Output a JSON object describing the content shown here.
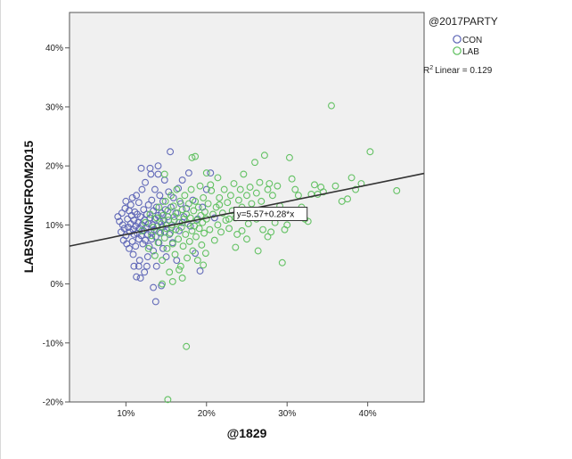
{
  "chart_data": {
    "type": "scatter",
    "title": "",
    "xlabel": "@1829",
    "ylabel": "LABSWINGFROM2015",
    "xlim": [
      0.03,
      0.47
    ],
    "ylim": [
      -0.2,
      0.46
    ],
    "x_ticks": [
      "10%",
      "20%",
      "30%",
      "40%"
    ],
    "x_tick_values": [
      0.1,
      0.2,
      0.3,
      0.4
    ],
    "y_ticks": [
      "40%",
      "30%",
      "20%",
      "10%",
      "0%",
      "-10%",
      "-20%"
    ],
    "y_tick_values": [
      0.4,
      0.3,
      0.2,
      0.1,
      0.0,
      -0.1,
      -0.2
    ],
    "grid": false,
    "legend": {
      "title": "@2017PARTY",
      "placement": "right",
      "entries": [
        {
          "name": "CON",
          "color": "#5b63b5"
        },
        {
          "name": "LAB",
          "color": "#5cbf5c"
        }
      ]
    },
    "fit_line": {
      "intercept": 0.0557,
      "slope": 0.28,
      "equation_label": "y=5.57+0.28*x",
      "r2_label": "Linear = 0.129",
      "color": "#333333"
    },
    "series": [
      {
        "name": "CON",
        "color": "#5b63b5",
        "points": [
          [
            0.09,
            0.114
          ],
          [
            0.092,
            0.106
          ],
          [
            0.094,
            0.088
          ],
          [
            0.095,
            0.12
          ],
          [
            0.096,
            0.1
          ],
          [
            0.097,
            0.074
          ],
          [
            0.098,
            0.094
          ],
          [
            0.099,
            0.128
          ],
          [
            0.1,
            0.082
          ],
          [
            0.1,
            0.14
          ],
          [
            0.101,
            0.068
          ],
          [
            0.102,
            0.11
          ],
          [
            0.103,
            0.096
          ],
          [
            0.104,
            0.124
          ],
          [
            0.104,
            0.06
          ],
          [
            0.105,
            0.088
          ],
          [
            0.106,
            0.134
          ],
          [
            0.106,
            0.102
          ],
          [
            0.107,
            0.116
          ],
          [
            0.108,
            0.072
          ],
          [
            0.108,
            0.146
          ],
          [
            0.109,
            0.092
          ],
          [
            0.11,
            0.084
          ],
          [
            0.11,
            0.03
          ],
          [
            0.11,
            0.108
          ],
          [
            0.111,
            0.122
          ],
          [
            0.112,
            0.064
          ],
          [
            0.112,
            0.098
          ],
          [
            0.113,
            0.15
          ],
          [
            0.113,
            0.012
          ],
          [
            0.114,
            0.086
          ],
          [
            0.114,
            0.118
          ],
          [
            0.115,
            0.104
          ],
          [
            0.116,
            0.076
          ],
          [
            0.116,
            0.138
          ],
          [
            0.117,
            0.094
          ],
          [
            0.117,
            0.04
          ],
          [
            0.118,
            0.114
          ],
          [
            0.119,
            0.082
          ],
          [
            0.12,
            0.16
          ],
          [
            0.12,
            0.1
          ],
          [
            0.121,
            0.068
          ],
          [
            0.122,
            0.126
          ],
          [
            0.122,
            0.09
          ],
          [
            0.123,
            0.108
          ],
          [
            0.124,
            0.074
          ],
          [
            0.124,
            0.172
          ],
          [
            0.125,
            0.096
          ],
          [
            0.126,
            0.118
          ],
          [
            0.126,
            0.03
          ],
          [
            0.127,
            0.084
          ],
          [
            0.128,
            0.134
          ],
          [
            0.128,
            0.102
          ],
          [
            0.129,
            0.064
          ],
          [
            0.13,
            0.196
          ],
          [
            0.13,
            0.112
          ],
          [
            0.131,
            0.088
          ],
          [
            0.132,
            0.142
          ],
          [
            0.132,
            0.076
          ],
          [
            0.133,
            0.1
          ],
          [
            0.134,
            0.124
          ],
          [
            0.134,
            0.056
          ],
          [
            0.135,
            0.092
          ],
          [
            0.136,
            0.16
          ],
          [
            0.136,
            0.11
          ],
          [
            0.137,
            0.08
          ],
          [
            0.138,
            0.13
          ],
          [
            0.138,
            0.03
          ],
          [
            0.139,
            0.098
          ],
          [
            0.14,
            0.186
          ],
          [
            0.14,
            0.116
          ],
          [
            0.141,
            0.07
          ],
          [
            0.142,
            0.106
          ],
          [
            0.142,
            0.15
          ],
          [
            0.143,
            0.086
          ],
          [
            0.144,
            0.12
          ],
          [
            0.144,
            -0.003
          ],
          [
            0.145,
            0.096
          ],
          [
            0.146,
            0.14
          ],
          [
            0.146,
            0.06
          ],
          [
            0.147,
            0.108
          ],
          [
            0.148,
            0.176
          ],
          [
            0.148,
            0.088
          ],
          [
            0.149,
            0.126
          ],
          [
            0.15,
            0.1
          ],
          [
            0.15,
            0.046
          ],
          [
            0.152,
            0.114
          ],
          [
            0.153,
            0.156
          ],
          [
            0.154,
            0.084
          ],
          [
            0.155,
            0.224
          ],
          [
            0.156,
            0.13
          ],
          [
            0.157,
            0.096
          ],
          [
            0.158,
            0.07
          ],
          [
            0.159,
            0.146
          ],
          [
            0.16,
            0.108
          ],
          [
            0.162,
            0.12
          ],
          [
            0.163,
            0.04
          ],
          [
            0.165,
            0.162
          ],
          [
            0.166,
            0.09
          ],
          [
            0.168,
            0.136
          ],
          [
            0.17,
            0.104
          ],
          [
            0.172,
            0.114
          ],
          [
            0.175,
            0.128
          ],
          [
            0.178,
            0.188
          ],
          [
            0.18,
            0.098
          ],
          [
            0.183,
            0.142
          ],
          [
            0.186,
            0.052
          ],
          [
            0.189,
            0.11
          ],
          [
            0.192,
            0.022
          ],
          [
            0.195,
            0.13
          ],
          [
            0.118,
            0.01
          ],
          [
            0.127,
            0.046
          ],
          [
            0.134,
            -0.006
          ],
          [
            0.137,
            -0.03
          ],
          [
            0.123,
            0.02
          ],
          [
            0.131,
            0.186
          ],
          [
            0.119,
            0.196
          ],
          [
            0.109,
            0.05
          ],
          [
            0.116,
            0.03
          ],
          [
            0.14,
            0.2
          ],
          [
            0.205,
            0.188
          ],
          [
            0.17,
            0.176
          ],
          [
            0.21,
            0.112
          ],
          [
            0.2,
            0.16
          ]
        ]
      },
      {
        "name": "LAB",
        "color": "#5cbf5c",
        "points": [
          [
            0.12,
            0.09
          ],
          [
            0.124,
            0.104
          ],
          [
            0.128,
            0.06
          ],
          [
            0.13,
            0.118
          ],
          [
            0.132,
            0.082
          ],
          [
            0.134,
            0.096
          ],
          [
            0.136,
            0.048
          ],
          [
            0.138,
            0.112
          ],
          [
            0.14,
            0.07
          ],
          [
            0.141,
            0.13
          ],
          [
            0.142,
            0.088
          ],
          [
            0.144,
            0.102
          ],
          [
            0.145,
            0.04
          ],
          [
            0.146,
            0.116
          ],
          [
            0.148,
            0.078
          ],
          [
            0.149,
            0.14
          ],
          [
            0.15,
            0.094
          ],
          [
            0.151,
            0.06
          ],
          [
            0.152,
            0.124
          ],
          [
            0.153,
            0.108
          ],
          [
            0.154,
            0.02
          ],
          [
            0.155,
            0.086
          ],
          [
            0.156,
            0.15
          ],
          [
            0.157,
            0.1
          ],
          [
            0.158,
            0.068
          ],
          [
            0.159,
            0.132
          ],
          [
            0.16,
            0.114
          ],
          [
            0.161,
            0.05
          ],
          [
            0.162,
            0.092
          ],
          [
            0.163,
            0.16
          ],
          [
            0.164,
            0.12
          ],
          [
            0.165,
            0.076
          ],
          [
            0.166,
            0.104
          ],
          [
            0.167,
            0.14
          ],
          [
            0.168,
            0.03
          ],
          [
            0.169,
            0.096
          ],
          [
            0.17,
            0.126
          ],
          [
            0.171,
            0.064
          ],
          [
            0.172,
            0.11
          ],
          [
            0.173,
            0.15
          ],
          [
            0.174,
            0.084
          ],
          [
            0.175,
            0.118
          ],
          [
            0.176,
            0.044
          ],
          [
            0.177,
            0.102
          ],
          [
            0.178,
            0.136
          ],
          [
            0.179,
            0.072
          ],
          [
            0.18,
            0.112
          ],
          [
            0.181,
            0.16
          ],
          [
            0.182,
            0.09
          ],
          [
            0.183,
            0.056
          ],
          [
            0.184,
            0.124
          ],
          [
            0.185,
            0.098
          ],
          [
            0.186,
            0.14
          ],
          [
            0.187,
            0.08
          ],
          [
            0.188,
            0.108
          ],
          [
            0.189,
            0.04
          ],
          [
            0.19,
            0.13
          ],
          [
            0.191,
            0.094
          ],
          [
            0.192,
            0.166
          ],
          [
            0.193,
            0.116
          ],
          [
            0.194,
            0.066
          ],
          [
            0.195,
            0.104
          ],
          [
            0.196,
            0.146
          ],
          [
            0.197,
            0.086
          ],
          [
            0.198,
            0.122
          ],
          [
            0.199,
            0.052
          ],
          [
            0.2,
            0.11
          ],
          [
            0.202,
            0.136
          ],
          [
            0.204,
            0.092
          ],
          [
            0.206,
            0.158
          ],
          [
            0.208,
            0.118
          ],
          [
            0.21,
            0.074
          ],
          [
            0.212,
            0.13
          ],
          [
            0.214,
            0.1
          ],
          [
            0.216,
            0.146
          ],
          [
            0.218,
            0.088
          ],
          [
            0.22,
            0.12
          ],
          [
            0.222,
            0.16
          ],
          [
            0.224,
            0.108
          ],
          [
            0.226,
            0.138
          ],
          [
            0.228,
            0.094
          ],
          [
            0.23,
            0.15
          ],
          [
            0.232,
            0.124
          ],
          [
            0.234,
            0.17
          ],
          [
            0.236,
            0.112
          ],
          [
            0.238,
            0.084
          ],
          [
            0.24,
            0.142
          ],
          [
            0.242,
            0.16
          ],
          [
            0.244,
            0.13
          ],
          [
            0.246,
            0.186
          ],
          [
            0.248,
            0.118
          ],
          [
            0.25,
            0.15
          ],
          [
            0.252,
            0.102
          ],
          [
            0.254,
            0.164
          ],
          [
            0.256,
            0.136
          ],
          [
            0.258,
            0.12
          ],
          [
            0.26,
            0.206
          ],
          [
            0.262,
            0.154
          ],
          [
            0.264,
            0.056
          ],
          [
            0.266,
            0.172
          ],
          [
            0.268,
            0.14
          ],
          [
            0.27,
            0.092
          ],
          [
            0.272,
            0.218
          ],
          [
            0.274,
            0.124
          ],
          [
            0.276,
            0.16
          ],
          [
            0.278,
            0.17
          ],
          [
            0.28,
            0.088
          ],
          [
            0.282,
            0.15
          ],
          [
            0.285,
            0.104
          ],
          [
            0.288,
            0.166
          ],
          [
            0.291,
            0.132
          ],
          [
            0.294,
            0.036
          ],
          [
            0.297,
            0.092
          ],
          [
            0.3,
            0.1
          ],
          [
            0.303,
            0.214
          ],
          [
            0.306,
            0.178
          ],
          [
            0.31,
            0.16
          ],
          [
            0.314,
            0.15
          ],
          [
            0.318,
            0.13
          ],
          [
            0.322,
            0.11
          ],
          [
            0.326,
            0.106
          ],
          [
            0.33,
            0.152
          ],
          [
            0.334,
            0.168
          ],
          [
            0.338,
            0.152
          ],
          [
            0.342,
            0.164
          ],
          [
            0.345,
            0.156
          ],
          [
            0.355,
            0.302
          ],
          [
            0.36,
            0.166
          ],
          [
            0.368,
            0.14
          ],
          [
            0.375,
            0.144
          ],
          [
            0.38,
            0.18
          ],
          [
            0.385,
            0.16
          ],
          [
            0.392,
            0.17
          ],
          [
            0.403,
            0.224
          ],
          [
            0.436,
            0.158
          ],
          [
            0.152,
            -0.196
          ],
          [
            0.175,
            -0.106
          ],
          [
            0.148,
            0.186
          ],
          [
            0.182,
            0.214
          ],
          [
            0.2,
            0.188
          ],
          [
            0.158,
            0.004
          ],
          [
            0.17,
            0.01
          ],
          [
            0.145,
            0.0
          ],
          [
            0.196,
            0.032
          ],
          [
            0.166,
            0.024
          ],
          [
            0.205,
            0.168
          ],
          [
            0.214,
            0.18
          ],
          [
            0.228,
            0.11
          ],
          [
            0.244,
            0.09
          ],
          [
            0.236,
            0.062
          ],
          [
            0.186,
            0.216
          ],
          [
            0.216,
            0.134
          ],
          [
            0.262,
            0.11
          ],
          [
            0.276,
            0.08
          ],
          [
            0.25,
            0.076
          ]
        ]
      }
    ]
  }
}
